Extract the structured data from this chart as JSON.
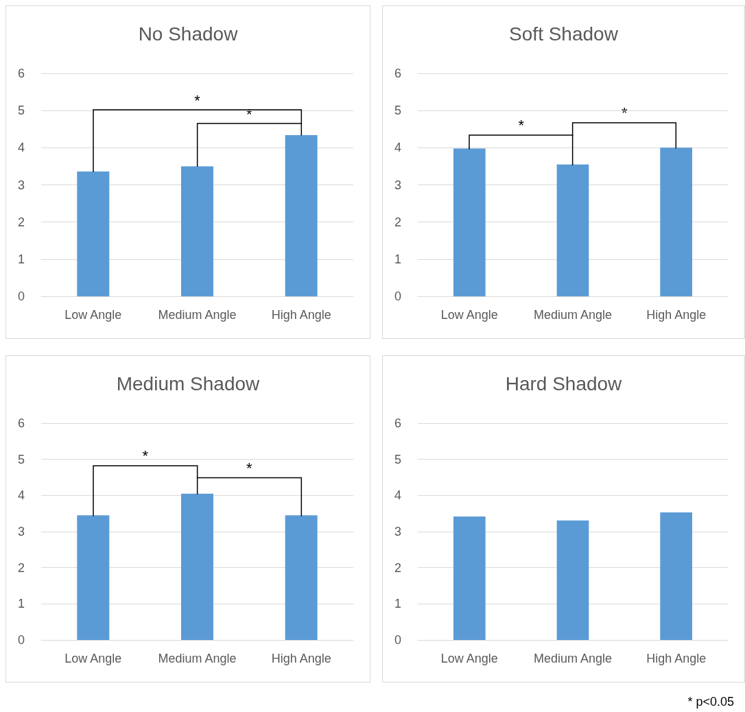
{
  "chart_data": [
    {
      "type": "bar",
      "title": "No Shadow",
      "categories": [
        "Low Angle",
        "Medium Angle",
        "High Angle"
      ],
      "values": [
        3.36,
        3.5,
        4.34
      ],
      "color": "#5b9bd5",
      "ylim": [
        0,
        6
      ],
      "yticks": [
        0,
        1,
        2,
        3,
        4,
        5,
        6
      ],
      "grid": "y",
      "annotations": [
        "*",
        "*"
      ]
    },
    {
      "type": "bar",
      "title": "Soft Shadow",
      "categories": [
        "Low Angle",
        "Medium Angle",
        "High Angle"
      ],
      "values": [
        3.98,
        3.55,
        4.0
      ],
      "color": "#5b9bd5",
      "ylim": [
        0,
        6
      ],
      "yticks": [
        0,
        1,
        2,
        3,
        4,
        5,
        6
      ],
      "grid": "y",
      "annotations": [
        "*",
        "*"
      ]
    },
    {
      "type": "bar",
      "title": "Medium Shadow",
      "categories": [
        "Low Angle",
        "Medium Angle",
        "High Angle"
      ],
      "values": [
        3.45,
        4.05,
        3.45
      ],
      "color": "#5b9bd5",
      "ylim": [
        0,
        6
      ],
      "yticks": [
        0,
        1,
        2,
        3,
        4,
        5,
        6
      ],
      "grid": "y",
      "annotations": [
        "*",
        "*"
      ]
    },
    {
      "type": "bar",
      "title": "Hard Shadow",
      "categories": [
        "Low Angle",
        "Medium Angle",
        "High Angle"
      ],
      "values": [
        3.42,
        3.31,
        3.53
      ],
      "color": "#5b9bd5",
      "ylim": [
        0,
        6
      ],
      "yticks": [
        0,
        1,
        2,
        3,
        4,
        5,
        6
      ],
      "grid": "y",
      "annotations": [
        "* p<0.05"
      ]
    }
  ]
}
